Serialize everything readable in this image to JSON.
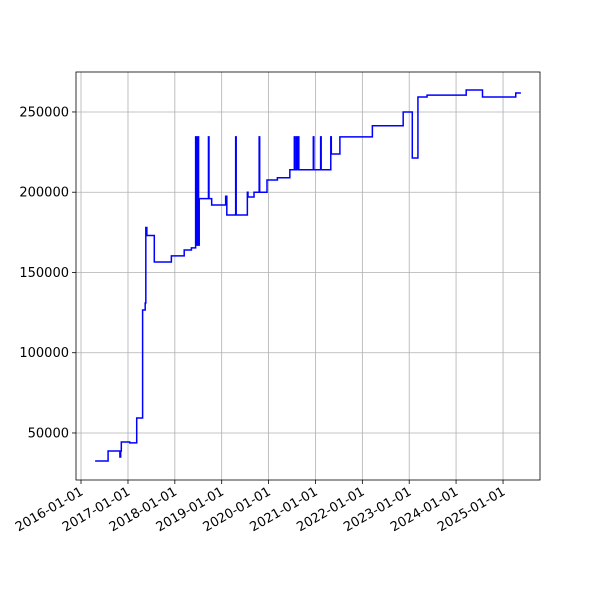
{
  "chart_data": {
    "type": "line",
    "drawstyle": "steps-post",
    "color": "#0000ff",
    "grid": true,
    "x": [
      "2016-04-20",
      "2016-07-30",
      "2016-10-30",
      "2016-11-05",
      "2016-11-10",
      "2017-01-15",
      "2017-03-10",
      "2017-04-25",
      "2017-05-15",
      "2017-05-20",
      "2017-05-28",
      "2017-07-25",
      "2017-12-05",
      "2018-03-15",
      "2018-05-10",
      "2018-06-12",
      "2018-06-15",
      "2018-06-20",
      "2018-06-25",
      "2018-07-01",
      "2018-07-05",
      "2018-07-10",
      "2018-09-20",
      "2018-09-24",
      "2018-10-15",
      "2019-02-01",
      "2019-02-10",
      "2019-04-20",
      "2019-04-24",
      "2019-07-20",
      "2019-07-25",
      "2019-09-10",
      "2019-10-20",
      "2019-10-24",
      "2019-12-20",
      "2020-03-10",
      "2020-06-15",
      "2020-07-20",
      "2020-07-24",
      "2020-08-05",
      "2020-08-09",
      "2020-08-20",
      "2020-08-24",
      "2020-12-15",
      "2020-12-19",
      "2021-02-10",
      "2021-02-14",
      "2021-04-30",
      "2021-05-04",
      "2021-07-10",
      "2022-03-20",
      "2022-11-15",
      "2023-01-25",
      "2023-03-10",
      "2023-05-20",
      "2024-03-20",
      "2024-07-25",
      "2025-04-10",
      "2025-05-20"
    ],
    "values": [
      32500,
      38800,
      35000,
      38800,
      44400,
      43800,
      59300,
      126600,
      131000,
      178000,
      173000,
      156500,
      160300,
      164000,
      165300,
      234500,
      167000,
      234500,
      167000,
      234500,
      167000,
      196000,
      234500,
      196000,
      192000,
      197500,
      185800,
      234500,
      185800,
      200000,
      197000,
      200000,
      234500,
      200000,
      207600,
      209000,
      214000,
      234500,
      214000,
      234500,
      214000,
      234500,
      214000,
      234500,
      214000,
      234500,
      214000,
      234500,
      223800,
      234500,
      241400,
      250000,
      221300,
      259300,
      260500,
      263700,
      259300,
      261800,
      261800
    ],
    "xlim": [
      "2015-11-23",
      "2025-10-16"
    ],
    "xticks": [
      "2016-01-01",
      "2017-01-01",
      "2018-01-01",
      "2019-01-01",
      "2020-01-01",
      "2021-01-01",
      "2022-01-01",
      "2023-01-01",
      "2024-01-01",
      "2025-01-01"
    ],
    "ylim": [
      20700,
      274900
    ],
    "yticks": [
      50000,
      100000,
      150000,
      200000,
      250000
    ]
  }
}
